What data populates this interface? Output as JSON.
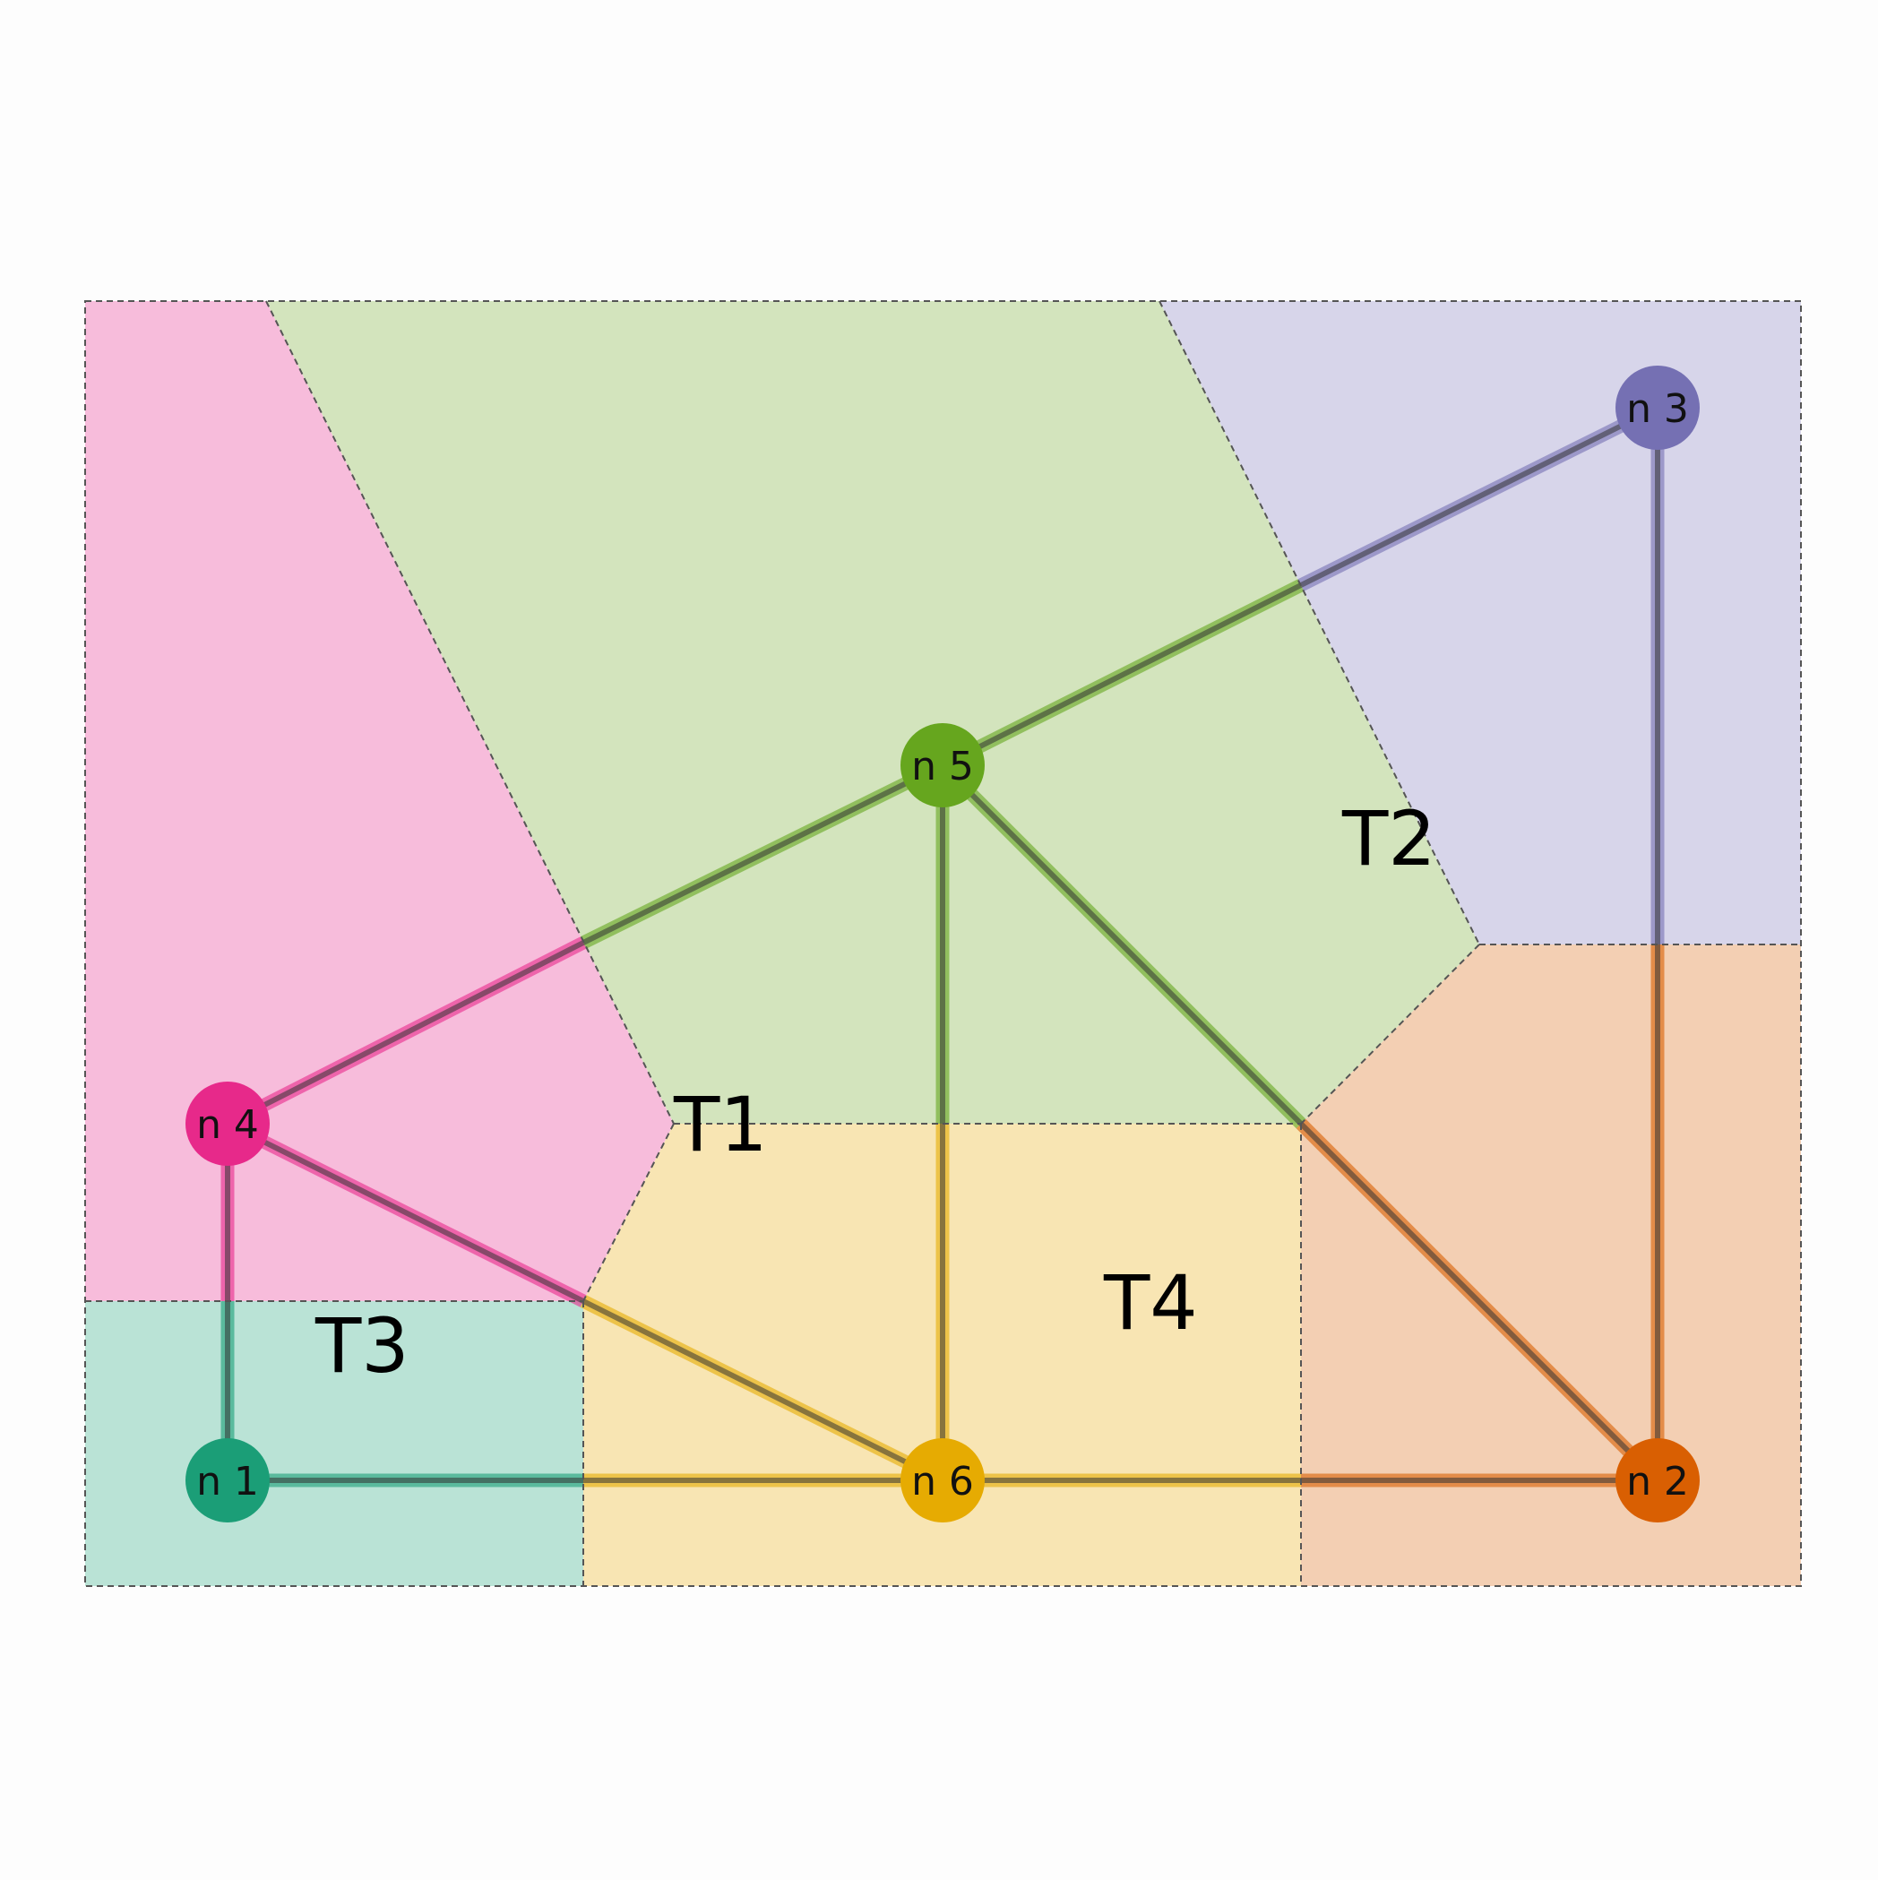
{
  "diagram": {
    "type": "partitioned-graph",
    "regions": [
      {
        "id": "pink",
        "color": "#e7298a"
      },
      {
        "id": "green",
        "color": "#66a61e"
      },
      {
        "id": "purple",
        "color": "#7570b3"
      },
      {
        "id": "teal",
        "color": "#1b9e77"
      },
      {
        "id": "yellow",
        "color": "#e6ab02"
      },
      {
        "id": "orange",
        "color": "#d95f02"
      }
    ],
    "region_labels": [
      "T1",
      "T2",
      "T3",
      "T4"
    ],
    "nodes": [
      {
        "id": "n1",
        "label": "n 1",
        "color": "#1b9e77"
      },
      {
        "id": "n2",
        "label": "n 2",
        "color": "#d95f02"
      },
      {
        "id": "n3",
        "label": "n 3",
        "color": "#7570b3"
      },
      {
        "id": "n4",
        "label": "n 4",
        "color": "#e7298a"
      },
      {
        "id": "n5",
        "label": "n 5",
        "color": "#66a61e"
      },
      {
        "id": "n6",
        "label": "n 6",
        "color": "#e6ab02"
      }
    ],
    "edges": [
      [
        "n4",
        "n5"
      ],
      [
        "n4",
        "n1"
      ],
      [
        "n4",
        "n6"
      ],
      [
        "n5",
        "n3"
      ],
      [
        "n5",
        "n6"
      ],
      [
        "n5",
        "n2"
      ],
      [
        "n1",
        "n6"
      ],
      [
        "n6",
        "n2"
      ],
      [
        "n3",
        "n2"
      ]
    ]
  }
}
